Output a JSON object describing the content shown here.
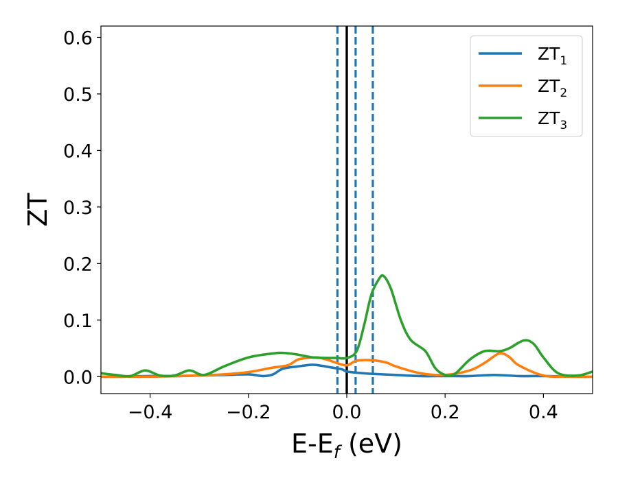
{
  "chart_data": {
    "type": "line",
    "xlabel": {
      "main": "E-E",
      "sub": "f",
      "suffix": " (eV)"
    },
    "ylabel": "ZT",
    "xlim": [
      -0.5,
      0.5
    ],
    "ylim": [
      -0.03,
      0.62
    ],
    "xticks": [
      -0.4,
      -0.2,
      0.0,
      0.2,
      0.4
    ],
    "xtick_labels": [
      "−0.4",
      "−0.2",
      "0.0",
      "0.2",
      "0.4"
    ],
    "yticks": [
      0.0,
      0.1,
      0.2,
      0.3,
      0.4,
      0.5,
      0.6
    ],
    "ytick_labels": [
      "0.0",
      "0.1",
      "0.2",
      "0.3",
      "0.4",
      "0.5",
      "0.6"
    ],
    "grid": false,
    "legend_position": "top-right",
    "vlines": [
      {
        "x": 0.0,
        "style": "solid",
        "color": "#000000"
      },
      {
        "x": -0.019,
        "style": "dashed",
        "color": "#1f77b4"
      },
      {
        "x": 0.018,
        "style": "dashed",
        "color": "#1f77b4"
      },
      {
        "x": 0.053,
        "style": "dashed",
        "color": "#1f77b4"
      }
    ],
    "series": [
      {
        "name": "ZT",
        "subscript": "1",
        "color": "#1f77b4",
        "x": [
          -0.5,
          -0.45,
          -0.4,
          -0.35,
          -0.3,
          -0.25,
          -0.2,
          -0.17,
          -0.15,
          -0.13,
          -0.1,
          -0.07,
          -0.05,
          -0.03,
          -0.01,
          0.0,
          0.02,
          0.05,
          0.1,
          0.15,
          0.2,
          0.25,
          0.3,
          0.35,
          0.4,
          0.45,
          0.5
        ],
        "y": [
          0.0,
          0.0,
          0.001,
          0.001,
          0.002,
          0.003,
          0.004,
          0.001,
          0.004,
          0.014,
          0.018,
          0.021,
          0.019,
          0.016,
          0.013,
          0.009,
          0.007,
          0.005,
          0.003,
          0.001,
          0.001,
          0.001,
          0.003,
          0.001,
          0.001,
          0.0,
          0.0
        ]
      },
      {
        "name": "ZT",
        "subscript": "2",
        "color": "#ff7f0e",
        "x": [
          -0.5,
          -0.4,
          -0.3,
          -0.25,
          -0.2,
          -0.15,
          -0.12,
          -0.1,
          -0.08,
          -0.06,
          -0.04,
          -0.02,
          0.0,
          0.02,
          0.05,
          0.08,
          0.1,
          0.15,
          0.2,
          0.25,
          0.28,
          0.31,
          0.33,
          0.35,
          0.4,
          0.45,
          0.5
        ],
        "y": [
          0.0,
          0.0,
          0.002,
          0.004,
          0.008,
          0.016,
          0.02,
          0.03,
          0.033,
          0.034,
          0.03,
          0.024,
          0.02,
          0.028,
          0.029,
          0.025,
          0.018,
          0.006,
          0.003,
          0.011,
          0.024,
          0.041,
          0.035,
          0.02,
          0.002,
          0.0,
          0.0
        ]
      },
      {
        "name": "ZT",
        "subscript": "3",
        "color": "#2ca02c",
        "x": [
          -0.5,
          -0.47,
          -0.44,
          -0.41,
          -0.38,
          -0.35,
          -0.32,
          -0.29,
          -0.25,
          -0.2,
          -0.15,
          -0.13,
          -0.1,
          -0.07,
          -0.04,
          -0.02,
          0.0,
          0.02,
          0.035,
          0.05,
          0.065,
          0.075,
          0.09,
          0.11,
          0.13,
          0.16,
          0.18,
          0.2,
          0.22,
          0.25,
          0.28,
          0.31,
          0.33,
          0.36,
          0.38,
          0.4,
          0.43,
          0.47,
          0.5
        ],
        "y": [
          0.006,
          0.003,
          0.001,
          0.011,
          0.002,
          0.002,
          0.011,
          0.003,
          0.018,
          0.034,
          0.041,
          0.042,
          0.039,
          0.034,
          0.033,
          0.033,
          0.033,
          0.045,
          0.09,
          0.145,
          0.172,
          0.178,
          0.155,
          0.1,
          0.065,
          0.045,
          0.015,
          0.003,
          0.005,
          0.03,
          0.045,
          0.045,
          0.05,
          0.064,
          0.058,
          0.034,
          0.006,
          0.002,
          0.009
        ]
      }
    ]
  }
}
